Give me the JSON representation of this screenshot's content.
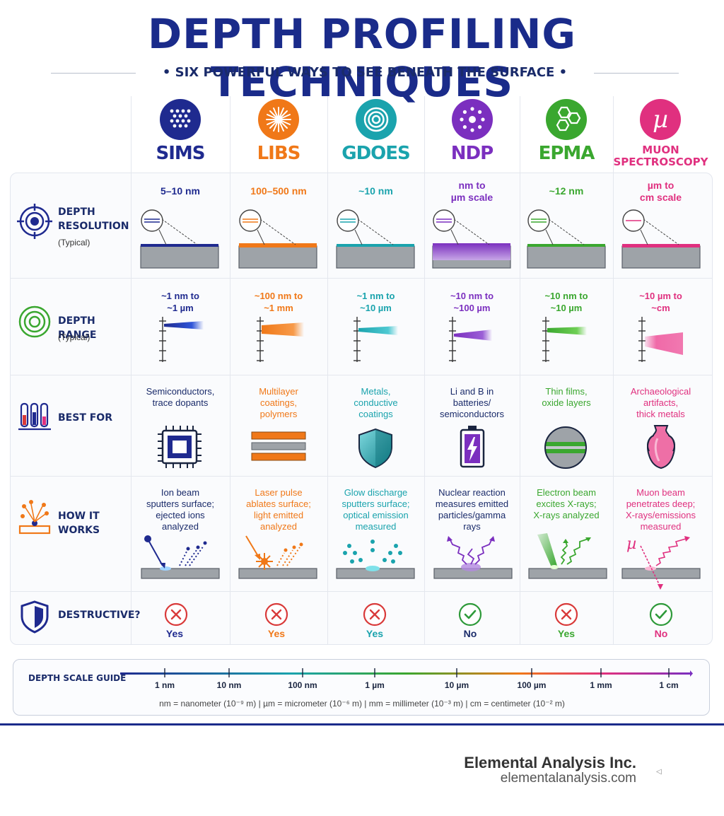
{
  "header": {
    "title": "DEPTH PROFILING TECHNIQUES",
    "subtitle": "•  SIX POWERFUL WAYS TO SEE BENEATH THE SURFACE  •"
  },
  "colors": {
    "SIMS": "#1f2a8f",
    "LIBS": "#f07818",
    "GDOES": "#1aa3ad",
    "NDP": "#7b2fbf",
    "EPMA": "#3aa72f",
    "MUON": "#e0307f",
    "destructive_x": "#d93a3a",
    "non_destructive_check": "#2e9a3a"
  },
  "rows": {
    "depth_resolution": {
      "label_1": "DEPTH",
      "label_2": "RESOLUTION",
      "sub": "(Typical)"
    },
    "depth_range": {
      "label": "DEPTH RANGE",
      "sub": "(Typical)"
    },
    "best_for": {
      "label": "BEST FOR"
    },
    "how_it_works": {
      "label": "HOW IT WORKS"
    },
    "destructive": {
      "label": "DESTRUCTIVE?"
    }
  },
  "techniques": [
    {
      "name": "SIMS",
      "badge_icon": "dot-grid-icon",
      "resolution": [
        "5–10 nm"
      ],
      "range": [
        "~1 nm to",
        "~1 µm"
      ],
      "best_for": [
        "Semiconductors,",
        "trace dopants"
      ],
      "best_for_icon": "chip-icon",
      "how": [
        "Ion beam",
        "sputters surface;",
        "ejected ions",
        "analyzed"
      ],
      "destructive": "Yes"
    },
    {
      "name": "LIBS",
      "badge_icon": "starburst-icon",
      "resolution": [
        "100–500 nm"
      ],
      "range": [
        "~100 nm to",
        "~1 mm"
      ],
      "best_for": [
        "Multilayer",
        "coatings,",
        "polymers"
      ],
      "best_for_icon": "layers-icon",
      "how": [
        "Laser pulse",
        "ablates surface;",
        "light emitted",
        "analyzed"
      ],
      "destructive": "Yes"
    },
    {
      "name": "GDOES",
      "badge_icon": "concentric-rings-icon",
      "resolution": [
        "~10 nm"
      ],
      "range": [
        "~1 nm to",
        "~10 µm"
      ],
      "best_for": [
        "Metals,",
        "conductive",
        "coatings"
      ],
      "best_for_icon": "shield-icon",
      "how": [
        "Glow discharge",
        "sputters surface;",
        "optical emission",
        "measured"
      ],
      "destructive": "Yes"
    },
    {
      "name": "NDP",
      "badge_icon": "atom-ring-icon",
      "resolution": [
        "nm to",
        "µm scale"
      ],
      "range": [
        "~10 nm to",
        "~100 µm"
      ],
      "best_for": [
        "Li and B in",
        "batteries/",
        "semiconductors"
      ],
      "best_for_icon": "battery-icon",
      "how": [
        "Nuclear reaction",
        "measures emitted",
        "particles/gamma",
        "rays"
      ],
      "destructive": "No"
    },
    {
      "name": "EPMA",
      "badge_icon": "hexagon-cluster-icon",
      "resolution": [
        "~12 nm"
      ],
      "range": [
        "~10 nm to",
        "~10 µm"
      ],
      "best_for": [
        "Thin films,",
        "oxide layers"
      ],
      "best_for_icon": "cross-section-icon",
      "how": [
        "Electron beam",
        "excites X-rays;",
        "X-rays analyzed"
      ],
      "destructive": "Yes"
    },
    {
      "name": "MUON SPECTROSCOPY",
      "name_1": "MUON",
      "name_2": "SPECTROSCOPY",
      "badge_symbol": "µ",
      "badge_icon": "mu-icon",
      "resolution": [
        "µm to",
        "cm scale"
      ],
      "range": [
        "~10 µm to",
        "~cm"
      ],
      "best_for": [
        "Archaeological",
        "artifacts,",
        "thick metals"
      ],
      "best_for_icon": "vase-icon",
      "how": [
        "Muon beam",
        "penetrates deep;",
        "X-rays/emissions",
        "measured"
      ],
      "destructive": "No"
    }
  ],
  "scale": {
    "title": "DEPTH SCALE GUIDE",
    "ticks": [
      "1 nm",
      "10 nm",
      "100 nm",
      "1 µm",
      "10 µm",
      "100 µm",
      "1 mm",
      "1 cm"
    ],
    "note": "nm = nanometer (10⁻⁹ m)   |   µm = micrometer (10⁻⁶ m)   |   mm = millimeter (10⁻³ m)   |   cm = centimeter (10⁻² m)"
  },
  "footer": {
    "company": "Elemental Analysis Inc.",
    "website": "elementalanalysis.com",
    "marker": "◁"
  }
}
